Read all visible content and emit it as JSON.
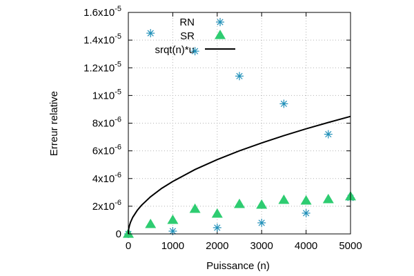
{
  "chart_data": {
    "type": "scatter",
    "xlabel": "Puissance (n)",
    "ylabel": "Erreur relative",
    "xlim": [
      0,
      5000
    ],
    "ylim": [
      0,
      1.6e-05
    ],
    "grid": true,
    "legend_position": "top-left",
    "x_ticks": [
      "0",
      "1000",
      "2000",
      "3000",
      "4000",
      "5000"
    ],
    "y_ticks": [
      {
        "mantissa": "0",
        "exponent": ""
      },
      {
        "mantissa": "2x10",
        "exponent": "-6"
      },
      {
        "mantissa": "4x10",
        "exponent": "-6"
      },
      {
        "mantissa": "6x10",
        "exponent": "-6"
      },
      {
        "mantissa": "8x10",
        "exponent": "-6"
      },
      {
        "mantissa": "1x10",
        "exponent": "-5"
      },
      {
        "mantissa": "1.2x10",
        "exponent": "-5"
      },
      {
        "mantissa": "1.4x10",
        "exponent": "-5"
      },
      {
        "mantissa": "1.6x10",
        "exponent": "-5"
      }
    ],
    "series": [
      {
        "name": "RN",
        "kind": "points",
        "marker": "asterisk",
        "color": "#1f8fb8",
        "x": [
          0,
          500,
          1000,
          1500,
          2000,
          2500,
          3000,
          3500,
          4000,
          4500,
          5000
        ],
        "y": [
          0,
          1.45e-05,
          2e-07,
          1.32e-05,
          4.5e-07,
          1.14e-05,
          8e-07,
          9.4e-06,
          1.5e-06,
          7.2e-06,
          2.6e-06
        ]
      },
      {
        "name": "SR",
        "kind": "points",
        "marker": "triangle",
        "color": "#2ecc71",
        "x": [
          0,
          500,
          1000,
          1500,
          2000,
          2500,
          3000,
          3500,
          4000,
          4500,
          5000
        ],
        "y": [
          0,
          7e-07,
          1e-06,
          1.8e-06,
          1.45e-06,
          2.15e-06,
          2.1e-06,
          2.45e-06,
          2.4e-06,
          2.5e-06,
          2.7e-06
        ]
      },
      {
        "name": "srqt(n)*u",
        "kind": "line",
        "color": "#000000",
        "formula": "sqrt(n)*1.2e-7",
        "x": [
          0,
          5,
          10,
          25,
          50,
          100,
          200,
          300,
          500,
          750,
          1000,
          1500,
          2000,
          2500,
          3000,
          3500,
          4000,
          4500,
          5000
        ],
        "y": [
          0,
          2.68e-07,
          3.79e-07,
          6e-07,
          8.49e-07,
          1.2e-06,
          1.7e-06,
          2.08e-06,
          2.68e-06,
          3.29e-06,
          3.79e-06,
          4.65e-06,
          5.37e-06,
          6e-06,
          6.57e-06,
          7.1e-06,
          7.59e-06,
          8.05e-06,
          8.49e-06
        ]
      }
    ]
  }
}
